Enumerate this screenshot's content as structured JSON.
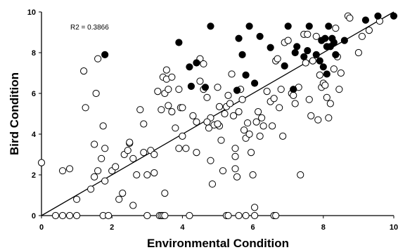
{
  "chart_data": {
    "type": "scatter",
    "title": "",
    "xlabel": "Environmental Condition",
    "ylabel": "Bird Condition",
    "xlim": [
      0,
      10
    ],
    "ylim": [
      0,
      10
    ],
    "xticks": [
      "0",
      "2",
      "4",
      "6",
      "8",
      "10"
    ],
    "yticks": [
      "0",
      "2",
      "4",
      "6",
      "8",
      "10"
    ],
    "annotation": "R2 = 0.3866",
    "grid": false,
    "legend": "none",
    "reference_line": {
      "x": [
        0,
        10
      ],
      "y": [
        0,
        10
      ]
    },
    "colors": {
      "filled": "#000000",
      "open_stroke": "#000000",
      "open_fill": "#ffffff"
    },
    "series": [
      {
        "style": "filled",
        "points": [
          [
            1.8,
            7.9
          ],
          [
            3.9,
            8.5
          ],
          [
            4.2,
            7.3
          ],
          [
            4.4,
            7.5
          ],
          [
            4.25,
            6.35
          ],
          [
            4.8,
            9.3
          ],
          [
            4.65,
            6.3
          ],
          [
            5.6,
            8.7
          ],
          [
            5.7,
            7.9
          ],
          [
            5.8,
            6.9
          ],
          [
            5.55,
            6.15
          ],
          [
            5.9,
            9.3
          ],
          [
            6.05,
            6.5
          ],
          [
            6.2,
            8.8
          ],
          [
            6.5,
            8.25
          ],
          [
            6.9,
            7.35
          ],
          [
            7.0,
            9.3
          ],
          [
            7.2,
            8.0
          ],
          [
            7.15,
            6.2
          ],
          [
            7.25,
            8.3
          ],
          [
            7.45,
            7.8
          ],
          [
            7.55,
            8.1
          ],
          [
            7.6,
            9.3
          ],
          [
            7.8,
            7.9
          ],
          [
            7.9,
            7.6
          ],
          [
            7.95,
            8.6
          ],
          [
            8.05,
            8.7
          ],
          [
            8.1,
            8.3
          ],
          [
            8.15,
            9.3
          ],
          [
            8.2,
            8.3
          ],
          [
            8.25,
            8.7
          ],
          [
            8.3,
            8.5
          ],
          [
            8.35,
            7.9
          ],
          [
            8.0,
            7.3
          ],
          [
            8.1,
            6.95
          ],
          [
            8.6,
            8.6
          ],
          [
            9.2,
            9.6
          ],
          [
            9.55,
            9.8
          ],
          [
            10.0,
            9.8
          ]
        ]
      },
      {
        "style": "open",
        "points": [
          [
            0.0,
            2.6
          ],
          [
            0.4,
            0.0
          ],
          [
            0.6,
            2.2
          ],
          [
            0.8,
            2.3
          ],
          [
            0.6,
            0.0
          ],
          [
            0.8,
            0.0
          ],
          [
            1.0,
            0.0
          ],
          [
            1.0,
            0.8
          ],
          [
            1.2,
            7.1
          ],
          [
            1.25,
            5.3
          ],
          [
            1.4,
            1.3
          ],
          [
            1.5,
            1.9
          ],
          [
            1.5,
            3.5
          ],
          [
            1.55,
            6.0
          ],
          [
            1.6,
            7.7
          ],
          [
            1.6,
            2.2
          ],
          [
            1.7,
            2.8
          ],
          [
            1.75,
            4.4
          ],
          [
            1.8,
            3.3
          ],
          [
            1.8,
            1.7
          ],
          [
            1.75,
            0.0
          ],
          [
            1.9,
            0.0
          ],
          [
            2.0,
            2.2
          ],
          [
            2.1,
            2.4
          ],
          [
            2.2,
            0.8
          ],
          [
            2.3,
            1.1
          ],
          [
            2.35,
            3.0
          ],
          [
            2.45,
            3.2
          ],
          [
            2.5,
            3.55
          ],
          [
            2.5,
            3.6
          ],
          [
            2.6,
            2.8
          ],
          [
            2.6,
            0.5
          ],
          [
            2.7,
            2.0
          ],
          [
            2.8,
            5.2
          ],
          [
            2.9,
            4.5
          ],
          [
            2.9,
            3.1
          ],
          [
            3.0,
            0.0
          ],
          [
            3.0,
            2.0
          ],
          [
            3.1,
            3.2
          ],
          [
            3.2,
            2.1
          ],
          [
            3.3,
            6.1
          ],
          [
            3.4,
            5.2
          ],
          [
            3.45,
            6.8
          ],
          [
            3.5,
            6.0
          ],
          [
            3.55,
            7.15
          ],
          [
            3.6,
            6.2
          ],
          [
            3.7,
            5.1
          ],
          [
            3.8,
            4.3
          ],
          [
            3.9,
            3.3
          ],
          [
            3.35,
            0.0
          ],
          [
            3.4,
            0.0
          ],
          [
            3.45,
            0.0
          ],
          [
            3.5,
            0.0
          ],
          [
            3.5,
            1.1
          ],
          [
            3.55,
            6.7
          ],
          [
            3.6,
            5.4
          ],
          [
            3.7,
            6.8
          ],
          [
            3.9,
            6.2
          ],
          [
            3.95,
            5.3
          ],
          [
            4.0,
            5.3
          ],
          [
            4.0,
            3.9
          ],
          [
            4.1,
            3.3
          ],
          [
            4.2,
            0.0
          ],
          [
            4.3,
            4.9
          ],
          [
            4.4,
            4.6
          ],
          [
            4.5,
            6.6
          ],
          [
            4.5,
            7.7
          ],
          [
            4.6,
            7.45
          ],
          [
            4.6,
            6.2
          ],
          [
            4.7,
            5.8
          ],
          [
            4.75,
            4.3
          ],
          [
            4.8,
            4.8
          ],
          [
            4.8,
            2.7
          ],
          [
            4.85,
            1.55
          ],
          [
            4.9,
            4.45
          ],
          [
            5.0,
            6.3
          ],
          [
            5.05,
            5.35
          ],
          [
            5.05,
            4.4
          ],
          [
            5.1,
            3.7
          ],
          [
            5.15,
            2.2
          ],
          [
            5.25,
            5.35
          ],
          [
            5.3,
            5.9
          ],
          [
            5.35,
            5.5
          ],
          [
            5.4,
            6.95
          ],
          [
            5.45,
            4.9
          ],
          [
            5.5,
            3.3
          ],
          [
            5.5,
            2.9
          ],
          [
            5.5,
            2.3
          ],
          [
            5.55,
            1.9
          ],
          [
            5.6,
            5.1
          ],
          [
            5.65,
            6.2
          ],
          [
            5.7,
            5.7
          ],
          [
            5.75,
            4.2
          ],
          [
            5.8,
            3.8
          ],
          [
            5.85,
            4.55
          ],
          [
            5.9,
            4.0
          ],
          [
            5.95,
            3.1
          ],
          [
            6.0,
            2.0
          ],
          [
            6.05,
            0.4
          ],
          [
            6.1,
            4.6
          ],
          [
            6.15,
            5.1
          ],
          [
            6.2,
            3.9
          ],
          [
            6.25,
            4.8
          ],
          [
            6.3,
            4.4
          ],
          [
            6.4,
            6.1
          ],
          [
            6.5,
            5.6
          ],
          [
            6.55,
            4.4
          ],
          [
            6.6,
            5.75
          ],
          [
            6.65,
            7.6
          ],
          [
            6.7,
            7.7
          ],
          [
            6.75,
            5.3
          ],
          [
            6.8,
            6.2
          ],
          [
            6.85,
            3.9
          ],
          [
            6.9,
            8.5
          ],
          [
            7.0,
            8.6
          ],
          [
            7.1,
            6.0
          ],
          [
            7.15,
            5.9
          ],
          [
            7.2,
            5.5
          ],
          [
            7.3,
            6.3
          ],
          [
            7.35,
            2.0
          ],
          [
            7.45,
            8.9
          ],
          [
            7.5,
            7.5
          ],
          [
            7.55,
            8.9
          ],
          [
            7.6,
            5.7
          ],
          [
            7.65,
            4.9
          ],
          [
            7.7,
            7.6
          ],
          [
            7.8,
            8.8
          ],
          [
            7.85,
            4.7
          ],
          [
            7.9,
            6.9
          ],
          [
            7.95,
            6.3
          ],
          [
            8.0,
            6.5
          ],
          [
            8.05,
            6.4
          ],
          [
            8.1,
            5.8
          ],
          [
            8.15,
            4.8
          ],
          [
            8.2,
            5.5
          ],
          [
            8.3,
            7.2
          ],
          [
            8.35,
            9.2
          ],
          [
            8.4,
            7.8
          ],
          [
            8.45,
            6.2
          ],
          [
            8.5,
            7.0
          ],
          [
            8.7,
            9.8
          ],
          [
            8.75,
            9.7
          ],
          [
            9.0,
            8.0
          ],
          [
            9.1,
            8.8
          ],
          [
            9.3,
            9.1
          ],
          [
            9.6,
            9.55
          ],
          [
            5.25,
            0.0
          ],
          [
            5.3,
            0.0
          ],
          [
            5.6,
            0.0
          ],
          [
            5.8,
            0.0
          ],
          [
            6.05,
            0.0
          ],
          [
            6.6,
            0.0
          ],
          [
            6.65,
            0.0
          ],
          [
            3.2,
            3.0
          ],
          [
            4.4,
            3.1
          ],
          [
            4.7,
            4.6
          ],
          [
            5.2,
            5.0
          ],
          [
            5.0,
            4.5
          ]
        ]
      }
    ]
  }
}
